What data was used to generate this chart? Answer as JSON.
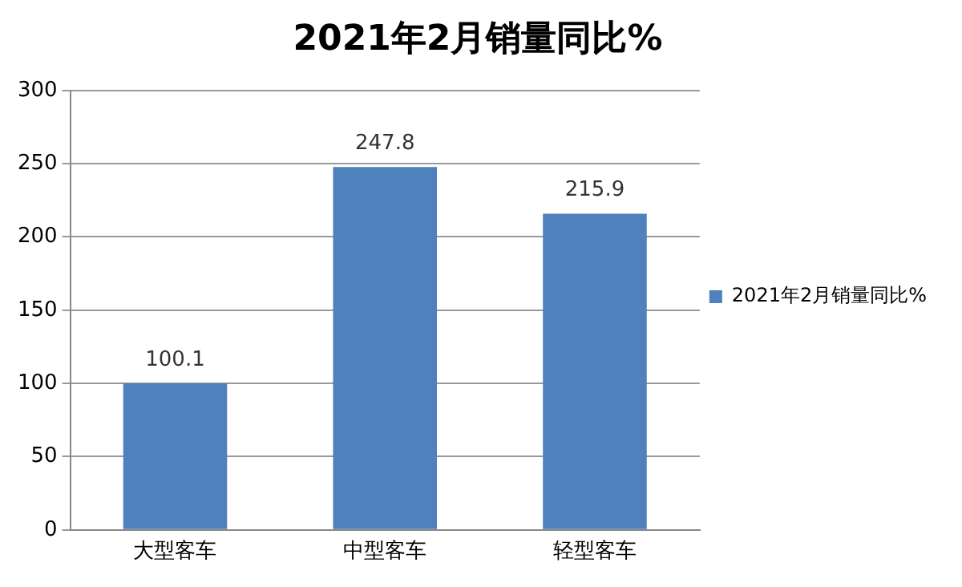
{
  "chart_data": {
    "type": "bar",
    "title": "2021年2月销量同比%",
    "categories": [
      "大型客车",
      "中型客车",
      "轻型客车"
    ],
    "series": [
      {
        "name": "2021年2月销量同比%",
        "color": "#4f81bd",
        "values": [
          100.1,
          247.8,
          215.9
        ]
      }
    ],
    "ylim": [
      0,
      300
    ],
    "yticks": [
      0,
      50,
      100,
      150,
      200,
      250,
      300
    ],
    "grid": "y",
    "legend": "right",
    "data_labels": true
  }
}
